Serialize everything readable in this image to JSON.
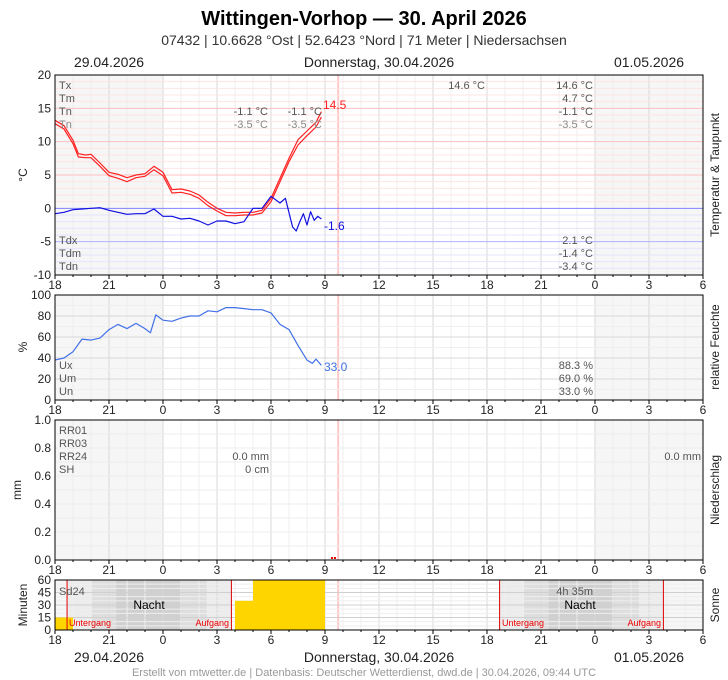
{
  "header": {
    "title": "Wittingen-Vorhop  —  30. April 2026",
    "subtitle": "07432  |  10.6628 °Ost  |  52.6423 °Nord  |  71 Meter  |  Niedersachsen",
    "date_left": "29.04.2026",
    "date_center": "Donnerstag, 30.04.2026",
    "date_right": "01.05.2026"
  },
  "footer": "Erstellt von mtwetter.de | Datenbasis: Deutscher Wetterdienst, dwd.de | 30.04.2026, 09:44 UTC",
  "colors": {
    "temperature": "#ff2020",
    "dewpoint": "#1010e0",
    "humidity": "#4070e8",
    "sunshine": "#ffd500",
    "sun_event": "#e00000",
    "now_line": "#ffc8c8"
  },
  "chart_data": [
    {
      "type": "line",
      "ylabel": "°C",
      "side_label": "Temperatur & Taupunkt",
      "x_ticks": [
        "18",
        "21",
        "0",
        "3",
        "6",
        "9",
        "12",
        "15",
        "18",
        "21",
        "0",
        "3",
        "6"
      ],
      "x_unit": "hours since 29.04.2026 18:00",
      "ylim": [
        -10,
        20
      ],
      "y_ticks": [
        "20",
        "15",
        "10",
        "5",
        "0",
        "-5",
        "-10"
      ],
      "series": [
        {
          "x": [
            0,
            0.5,
            1,
            1.3,
            1.7,
            2,
            2.5,
            3,
            3.5,
            4,
            4.5,
            5,
            5.5,
            6,
            6.5,
            7,
            7.5,
            8,
            8.5,
            9,
            9.5,
            10,
            10.5,
            11,
            11.5,
            12,
            12.5,
            13,
            13.5,
            14,
            14.5,
            14.8
          ],
          "y": [
            13.2,
            12.4,
            10.2,
            8.2,
            8.0,
            8.1,
            6.8,
            5.4,
            5.1,
            4.6,
            5.0,
            5.2,
            6.3,
            5.4,
            2.8,
            2.9,
            2.6,
            2.0,
            0.9,
            0.0,
            -0.6,
            -0.7,
            -0.6,
            -0.6,
            -0.3,
            1.5,
            4.5,
            7.5,
            10.3,
            11.6,
            12.9,
            14.5
          ]
        },
        {
          "x": [
            0,
            0.5,
            1,
            1.3,
            1.7,
            2,
            2.5,
            3,
            3.5,
            4,
            4.5,
            5,
            5.5,
            6,
            6.5,
            7,
            7.5,
            8,
            8.5,
            9,
            9.5,
            10,
            10.5,
            11,
            11.5,
            12,
            12.5,
            13,
            13.5,
            14,
            14.5,
            14.8
          ],
          "y": [
            12.7,
            11.9,
            9.7,
            7.7,
            7.6,
            7.6,
            6.3,
            4.9,
            4.5,
            4.0,
            4.6,
            4.8,
            5.8,
            4.9,
            2.3,
            2.4,
            2.1,
            1.5,
            0.4,
            -0.4,
            -1.1,
            -1.1,
            -1.0,
            -1.0,
            -0.7,
            1.0,
            4.0,
            7.0,
            9.5,
            10.9,
            12.2,
            13.7
          ]
        },
        {
          "x": [
            0,
            0.5,
            1,
            1.5,
            2,
            2.5,
            3,
            3.5,
            4,
            4.5,
            5,
            5.5,
            6,
            6.5,
            7,
            7.5,
            8,
            8.5,
            9,
            9.5,
            10,
            10.5,
            11,
            11.5,
            12,
            12.5,
            12.8,
            13.2,
            13.4,
            13.6,
            13.8,
            14,
            14.2,
            14.4,
            14.6,
            14.8
          ],
          "y": [
            -0.8,
            -0.6,
            -0.2,
            -0.1,
            0.0,
            0.1,
            -0.3,
            -0.6,
            -0.9,
            -0.8,
            -0.8,
            -0.1,
            -1.2,
            -1.2,
            -1.6,
            -1.5,
            -1.9,
            -2.5,
            -1.9,
            -1.9,
            -2.3,
            -2.0,
            0.0,
            0.0,
            1.8,
            0.8,
            1.5,
            -2.8,
            -3.4,
            -2.0,
            -0.8,
            -2.5,
            -0.5,
            -1.8,
            -1.2,
            -1.6
          ]
        }
      ],
      "end_labels": {
        "temperature": "14.5",
        "dewpoint": "-1.6"
      },
      "stats_labels": [
        "Tx",
        "Tm",
        "Tn",
        "Tn"
      ],
      "stats_col1": [
        "",
        "",
        "-1.1 °C",
        "-3.5 °C"
      ],
      "stats_col2": [
        "",
        "",
        "-1.1 °C",
        "-3.5 °C"
      ],
      "stats_col3": [
        "14.6 °C",
        "",
        "",
        ""
      ],
      "stats_col4": [
        "14.6 °C",
        "4.7 °C",
        "-1.1 °C",
        "-3.5 °C"
      ],
      "dew_labels": [
        "Tdx",
        "Tdm",
        "Tdn"
      ],
      "dew_values": [
        "2.1 °C",
        "-1.4 °C",
        "-3.4 °C"
      ]
    },
    {
      "type": "line",
      "ylabel": "%",
      "side_label": "relative Feuchte",
      "ylim": [
        0,
        100
      ],
      "y_ticks": [
        "100",
        "80",
        "60",
        "40",
        "20",
        "0"
      ],
      "series": [
        {
          "x": [
            0,
            0.5,
            1,
            1.5,
            2,
            2.5,
            3,
            3.5,
            4,
            4.5,
            5,
            5.3,
            5.6,
            6,
            6.5,
            7,
            7.5,
            8,
            8.5,
            9,
            9.5,
            10,
            10.5,
            11,
            11.5,
            12,
            12.5,
            13,
            13.5,
            14,
            14.3,
            14.5,
            14.8
          ],
          "y": [
            38,
            40,
            46,
            58,
            57,
            59,
            67,
            72,
            68,
            73,
            68,
            64,
            81,
            76,
            75,
            78,
            80,
            80,
            85,
            84,
            88,
            88,
            87,
            86,
            86,
            83,
            72,
            67,
            52,
            38,
            35,
            39,
            33
          ]
        }
      ],
      "end_label": "33.0",
      "stats_labels": [
        "Ux",
        "Um",
        "Un"
      ],
      "stats_values": [
        "88.3 %",
        "69.0 %",
        "33.0 %"
      ]
    },
    {
      "type": "bar",
      "ylabel": "mm",
      "side_label": "Niederschlag",
      "ylim": [
        0,
        1.0
      ],
      "y_ticks": [
        "1.0",
        "0.8",
        "0.6",
        "0.4",
        "0.2",
        "0.0"
      ],
      "stats_labels": [
        "RR01",
        "RR03",
        "RR24",
        "SH"
      ],
      "stats_col1": [
        "",
        "",
        "0.0 mm",
        "0 cm"
      ],
      "stats_col2": [
        "",
        "",
        "0.0 mm",
        ""
      ]
    },
    {
      "type": "bar",
      "ylabel": "Minuten",
      "side_label": "Sonne",
      "ylim": [
        0,
        60
      ],
      "y_ticks": [
        "60",
        "45",
        "30",
        "15",
        "0"
      ],
      "bars": [
        {
          "start": 0,
          "end": 1,
          "value": 15
        },
        {
          "start": 10,
          "end": 11,
          "value": 35
        },
        {
          "start": 11,
          "end": 15,
          "value": 60
        }
      ],
      "label": "Sd24",
      "sd24_value": "4h 35m",
      "night_label": "Nacht",
      "sunset_label": "Untergang",
      "sunrise_label": "Aufgang",
      "sunset_hours": [
        0.67,
        24.7
      ],
      "sunrise_hours": [
        9.8,
        33.8
      ]
    }
  ]
}
